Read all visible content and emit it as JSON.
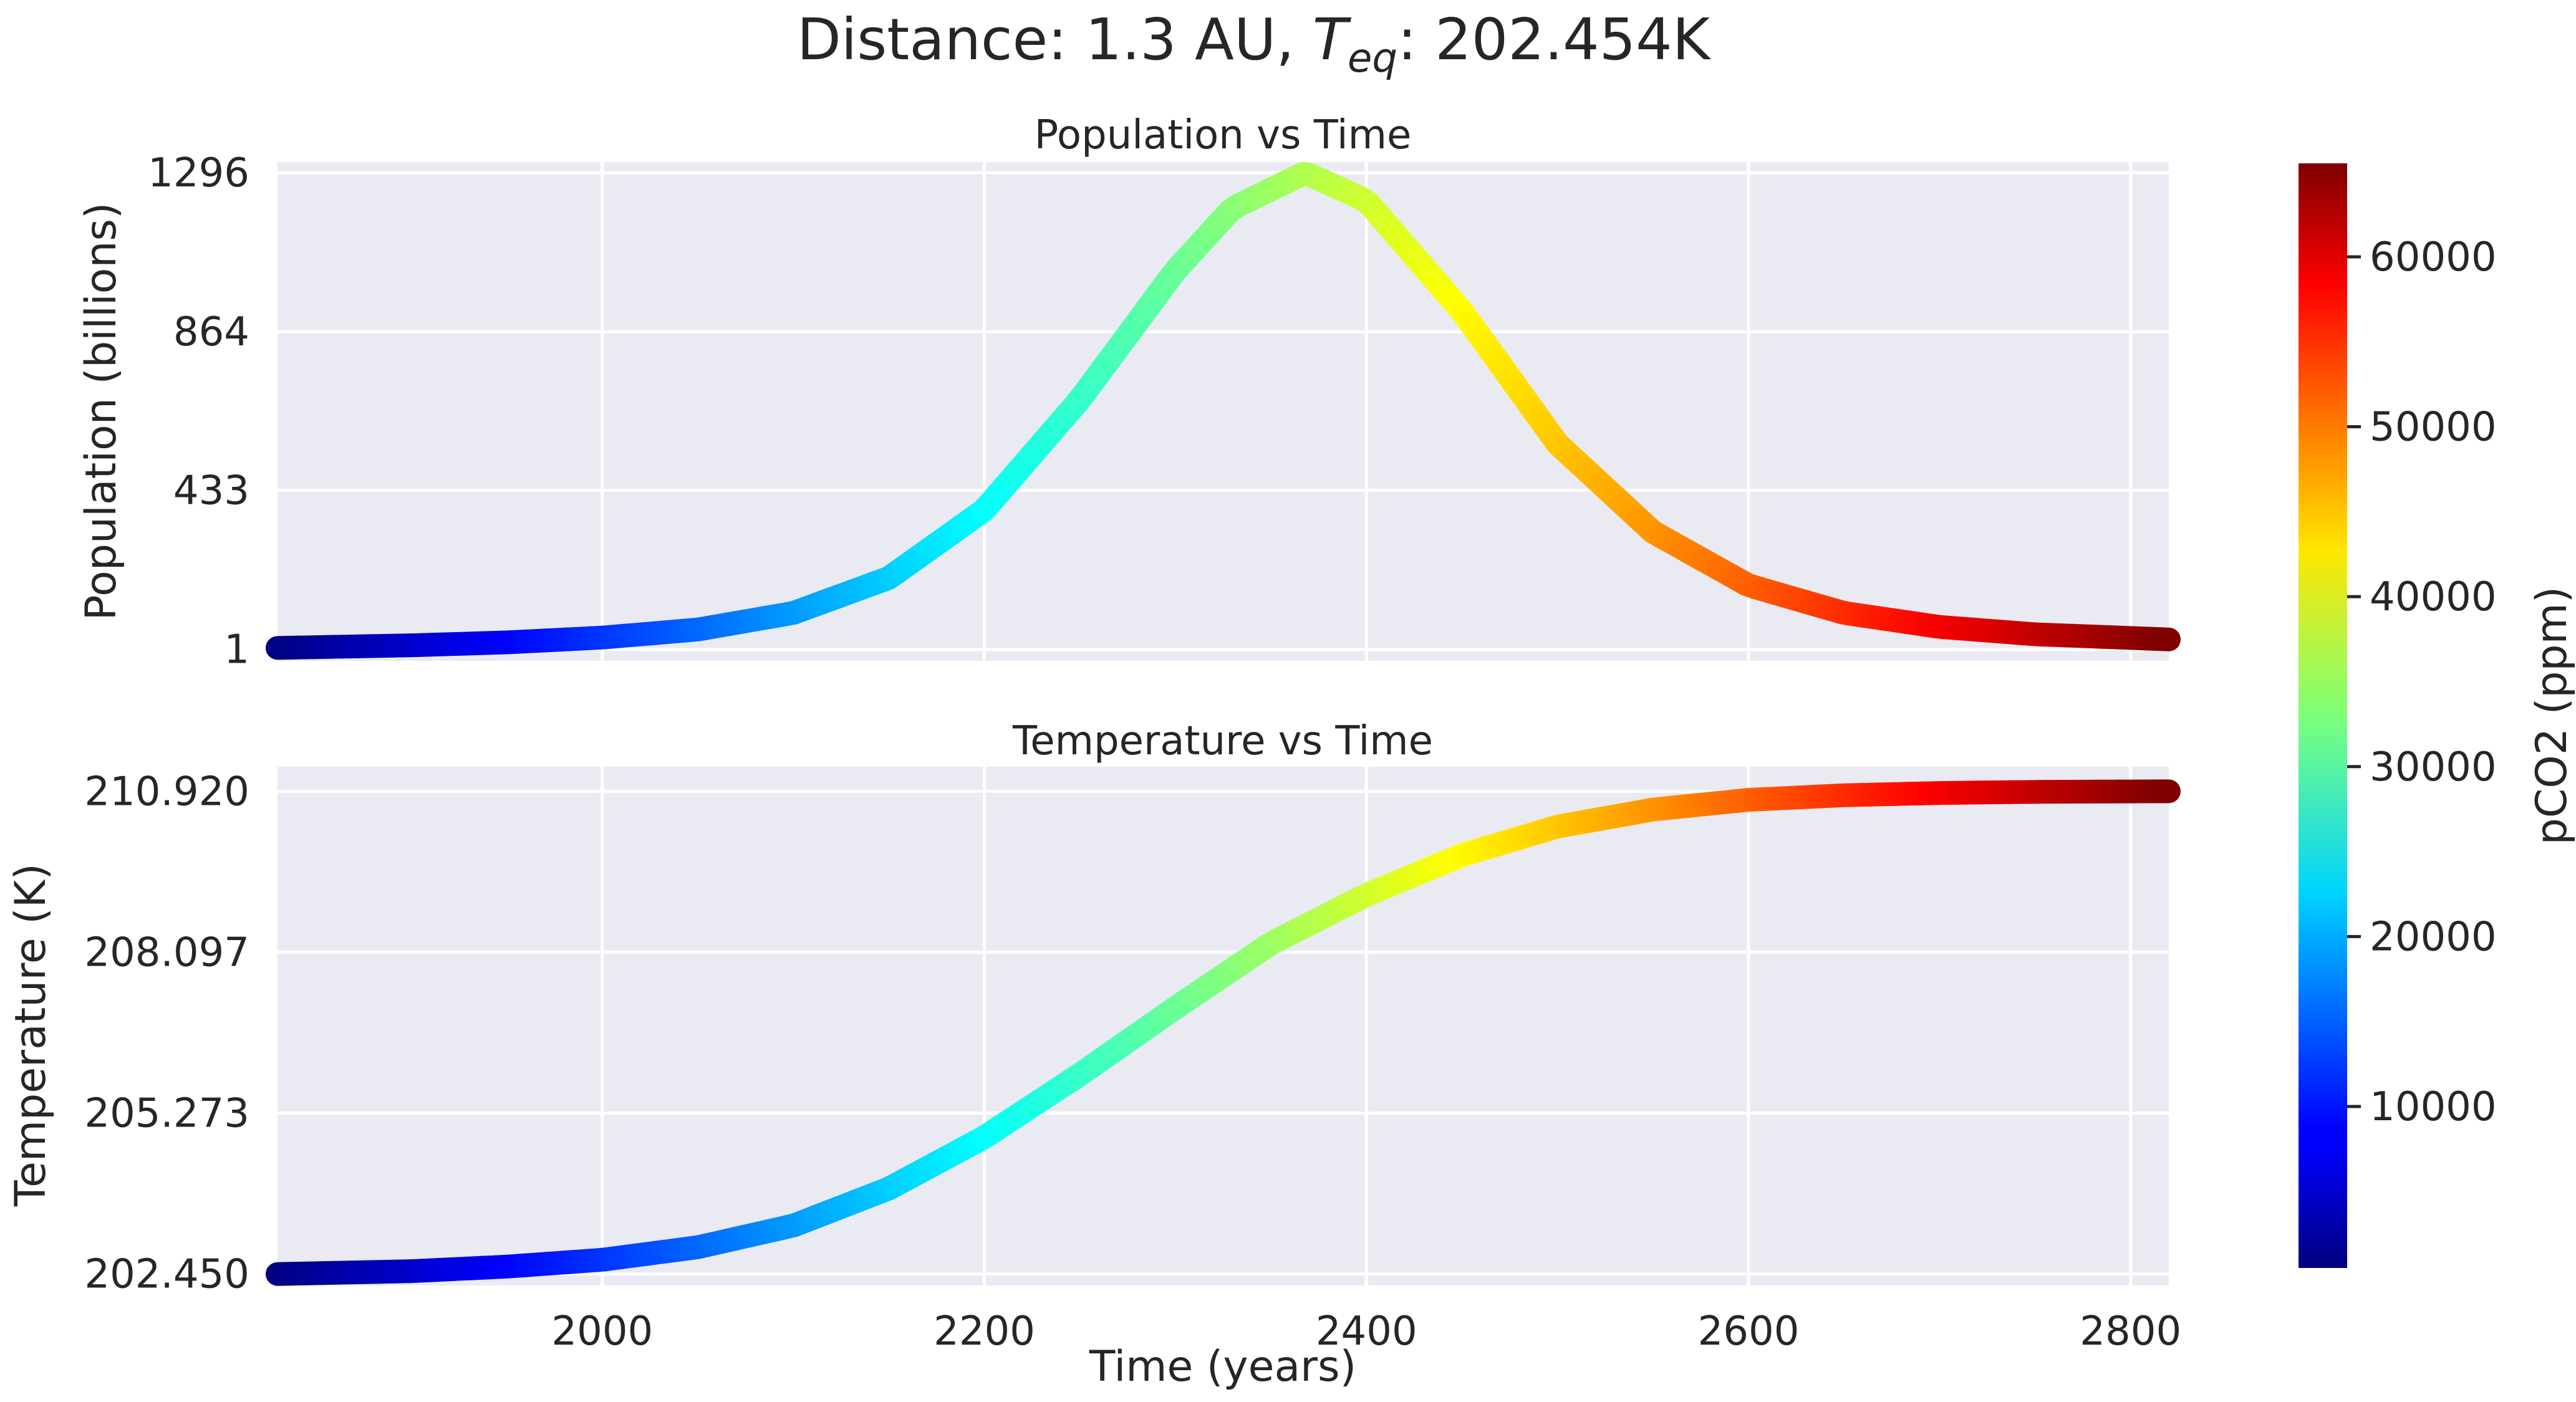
{
  "figure": {
    "title_prefix": "Distance: 1.3 AU,   ",
    "title_var": "T",
    "title_sub": "eq",
    "title_suffix": ": 202.454K"
  },
  "colors": {
    "axes_bg": "#eaeaf2",
    "grid": "#ffffff",
    "text": "#262626",
    "colormap": "jet"
  },
  "chart_data": [
    {
      "type": "line",
      "title": "Population vs Time",
      "xlabel": "",
      "ylabel": "Population (billions)",
      "xlim": [
        1830,
        2820
      ],
      "ylim": [
        -30,
        1325
      ],
      "xticks": [
        2000,
        2200,
        2400,
        2600,
        2800
      ],
      "show_xtick_labels": false,
      "yticks": [
        1,
        433,
        864,
        1296
      ],
      "ytick_labels": [
        "1",
        "433",
        "864",
        "1296"
      ],
      "grid": true,
      "color_by": "pCO2",
      "peak_time": 2368,
      "peak_value": 1296,
      "x": [
        1830,
        1900,
        1950,
        2000,
        2050,
        2100,
        2150,
        2200,
        2250,
        2300,
        2330,
        2368,
        2400,
        2450,
        2500,
        2550,
        2600,
        2650,
        2700,
        2750,
        2820
      ],
      "y": [
        5,
        12,
        20,
        33,
        55,
        100,
        195,
        380,
        680,
        1030,
        1200,
        1296,
        1220,
        920,
        560,
        320,
        175,
        100,
        62,
        42,
        28
      ]
    },
    {
      "type": "line",
      "title": "Temperature vs Time",
      "xlabel": "Time (years)",
      "ylabel": "Temperature (K)",
      "xlim": [
        1830,
        2820
      ],
      "ylim": [
        202.25,
        211.35
      ],
      "xticks": [
        2000,
        2200,
        2400,
        2600,
        2800
      ],
      "xtick_labels": [
        "2000",
        "2200",
        "2400",
        "2600",
        "2800"
      ],
      "show_xtick_labels": true,
      "yticks": [
        202.45,
        205.273,
        208.097,
        210.92
      ],
      "ytick_labels": [
        "202.450",
        "205.273",
        "208.097",
        "210.920"
      ],
      "grid": true,
      "color_by": "pCO2",
      "x": [
        1830,
        1900,
        1950,
        2000,
        2050,
        2100,
        2150,
        2200,
        2250,
        2300,
        2350,
        2400,
        2450,
        2500,
        2550,
        2600,
        2650,
        2700,
        2750,
        2820
      ],
      "y": [
        202.45,
        202.5,
        202.58,
        202.7,
        202.92,
        203.3,
        203.95,
        204.85,
        205.95,
        207.12,
        208.25,
        209.1,
        209.8,
        210.3,
        210.6,
        210.77,
        210.85,
        210.89,
        210.91,
        210.92
      ]
    }
  ],
  "colorbar": {
    "label": "pCO2 (ppm)",
    "min": 500,
    "max": 65500,
    "ticks": [
      10000,
      20000,
      30000,
      40000,
      50000,
      60000
    ],
    "tick_labels": [
      "10000",
      "20000",
      "30000",
      "40000",
      "50000",
      "60000"
    ],
    "time_range": [
      1830,
      2820
    ]
  }
}
